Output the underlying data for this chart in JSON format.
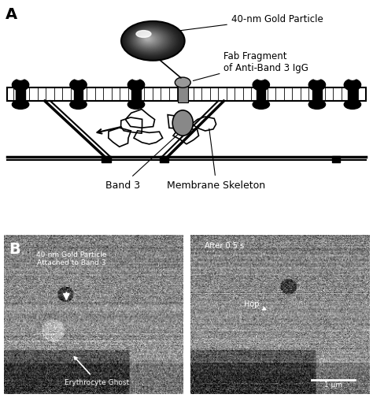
{
  "fig_width": 4.74,
  "fig_height": 5.06,
  "dpi": 100,
  "bg_color": "#ffffff",
  "panel_a_label": "A",
  "panel_b_label": "B",
  "label_fontsize": 14,
  "annotation_fontsize": 8.5,
  "gold_particle_label": "40-nm Gold Particle",
  "fab_label": "Fab Fragment\nof Anti-Band 3 IgG",
  "band3_label": "Band 3",
  "membrane_skeleton_label": "Membrane Skeleton",
  "left_panel_label1": "40-nm Gold Particle\nAttached to Band 3",
  "left_panel_label2": "Erythrocyte Ghost",
  "right_panel_label1": "After 0.5 s",
  "right_panel_label2": "Hop",
  "scale_bar_label": "1 μm"
}
